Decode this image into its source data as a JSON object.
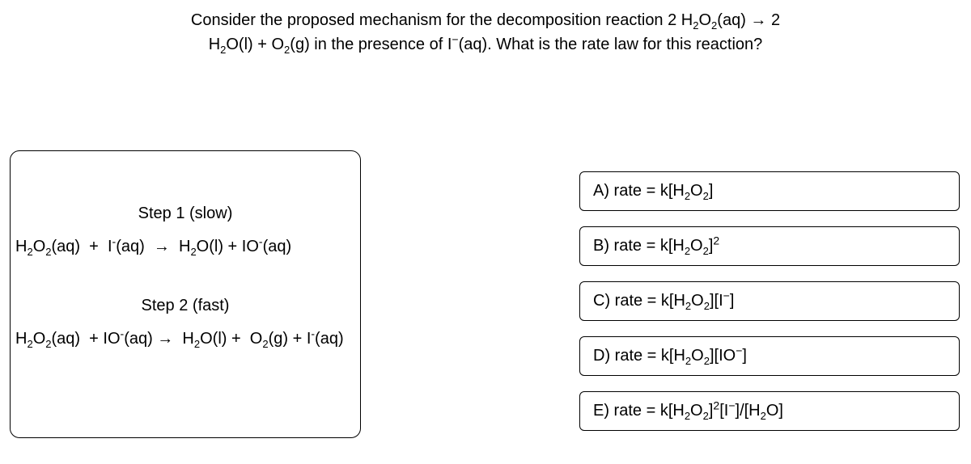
{
  "question": {
    "line1_html": "Consider the proposed mechanism for the decomposition reaction 2 H<sub>2</sub>O<sub>2</sub>(aq) → 2",
    "line2_html": "H<sub>2</sub>O(l) + O<sub>2</sub>(g) in the presence of I<sup>−</sup>(aq). What is the rate law for this reaction?"
  },
  "mechanism": {
    "step1_label": "Step 1 (slow)",
    "step1_eq_html": "H<sub>2</sub>O<sub>2</sub>(aq)&nbsp;&nbsp;+&nbsp;&nbsp;I<sup>-</sup>(aq)&nbsp;&nbsp;→&nbsp;&nbsp;H<sub>2</sub>O(l) + IO<sup>-</sup>(aq)",
    "step2_label": "Step 2 (fast)",
    "step2_eq_html": "H<sub>2</sub>O<sub>2</sub>(aq)&nbsp;&nbsp;+ IO<sup>-</sup>(aq)&nbsp;→&nbsp;&nbsp;H<sub>2</sub>O(l) +&nbsp;&nbsp;O<sub>2</sub>(g) + I<sup>-</sup>(aq)"
  },
  "options": {
    "a_html": "A) rate = k[H<sub>2</sub>O<sub>2</sub>]",
    "b_html": "B) rate = k[H<sub>2</sub>O<sub>2</sub>]<sup>2</sup>",
    "c_html": "C) rate = k[H<sub>2</sub>O<sub>2</sub>][I<sup>−</sup>]",
    "d_html": "D) rate = k[H<sub>2</sub>O<sub>2</sub>][IO<sup>−</sup>]",
    "e_html": "E) rate = k[H<sub>2</sub>O<sub>2</sub>]<sup>2</sup>[I<sup>−</sup>]/[H<sub>2</sub>O]"
  }
}
